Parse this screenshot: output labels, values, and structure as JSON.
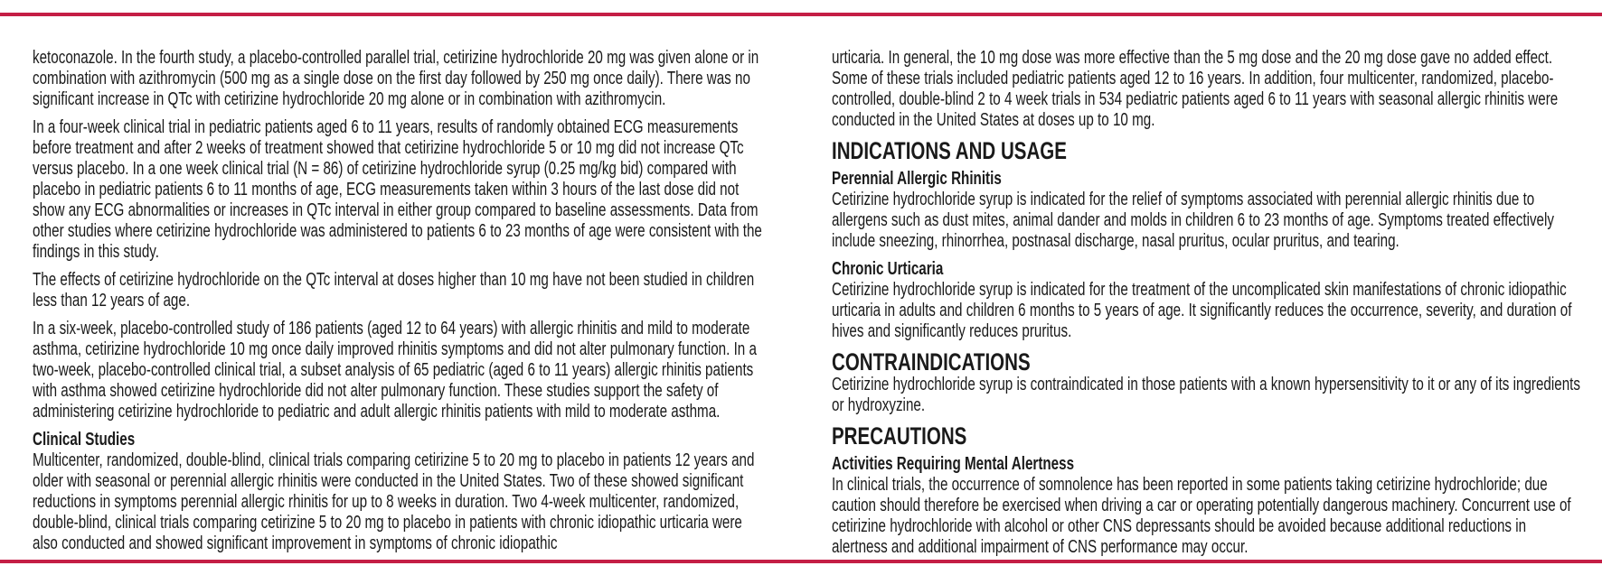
{
  "colors": {
    "rule": "#c41e45",
    "text": "#1a1a1a"
  },
  "left_column": {
    "paragraphs": [
      "ketoconazole. In the fourth study, a placebo-controlled parallel trial, cetirizine hydrochloride 20 mg was given alone or in combination with azithromycin (500 mg as a single dose on the first day followed by 250 mg once daily). There was no significant increase in QTc with cetirizine hydrochloride 20 mg alone or in combination with azithromycin.",
      "In a four-week clinical trial in pediatric patients aged 6 to 11 years, results of randomly obtained ECG measurements before treatment and after 2 weeks of treatment showed that cetirizine hydrochloride 5 or 10 mg did not increase QTc versus placebo. In a one week clinical trial (N = 86) of cetirizine hydrochloride syrup (0.25 mg/kg bid) compared with placebo in pediatric patients 6 to 11 months of age, ECG measurements taken within 3 hours of the last dose did not show any ECG abnormalities or increases in QTc interval in either group compared to baseline assessments. Data from other studies where cetirizine hydrochloride was administered to patients 6 to 23 months of age were consistent with the findings in this study.",
      "The effects of cetirizine hydrochloride on the QTc interval at doses higher than 10 mg have not been studied in children less than 12 years of age.",
      "In a six-week, placebo-controlled study of 186 patients (aged 12 to 64 years) with allergic rhinitis and mild to moderate asthma, cetirizine hydrochloride 10 mg once daily improved rhinitis symptoms and did not alter pulmonary function. In a two-week, placebo-controlled clinical trial, a subset analysis of 65 pediatric (aged 6 to 11 years) allergic rhinitis patients with asthma showed cetirizine hydrochloride did not alter pulmonary function. These studies support the safety of administering cetirizine hydrochloride to pediatric and adult allergic rhinitis patients with mild to moderate asthma."
    ],
    "clinical_studies": {
      "heading": "Clinical Studies",
      "text": "Multicenter, randomized, double-blind, clinical trials comparing cetirizine 5 to 20 mg to placebo in patients 12 years and older with seasonal or perennial allergic rhinitis were conducted in the United States. Two of these showed significant reductions in symptoms perennial allergic rhinitis for up to 8 weeks in duration. Two 4-week multicenter, randomized, double-blind, clinical trials comparing cetirizine 5 to 20 mg to placebo in patients with chronic idiopathic urticaria were also conducted and showed significant improvement in symptoms of chronic idiopathic"
    }
  },
  "right_column": {
    "continuation": "urticaria. In general, the 10 mg dose was more effective than the 5 mg dose and the 20 mg dose gave no added effect. Some of these trials included pediatric patients aged 12 to 16 years. In addition, four multicenter, randomized, placebo-controlled, double-blind 2 to 4 week trials in 534 pediatric patients aged 6 to 11 years with seasonal allergic rhinitis were conducted in the United States at doses up to 10 mg.",
    "indications": {
      "heading": "INDICATIONS AND USAGE",
      "perennial_heading": "Perennial Allergic Rhinitis",
      "perennial_text": "Cetirizine hydrochloride syrup is indicated for the relief of symptoms associated with perennial allergic rhinitis due to allergens such as dust mites, animal dander and molds in children 6 to 23 months of age. Symptoms treated effectively include sneezing, rhinorrhea, postnasal discharge, nasal pruritus, ocular pruritus, and tearing.",
      "urticaria_heading": "Chronic Urticaria",
      "urticaria_text": "Cetirizine hydrochloride syrup is indicated for the treatment of the uncomplicated skin manifestations of chronic idiopathic urticaria in adults and children 6 months to 5 years of age. It significantly reduces the occurrence, severity, and duration of hives and significantly reduces pruritus."
    },
    "contraindications": {
      "heading": "CONTRAINDICATIONS",
      "text": "Cetirizine hydrochloride syrup is contraindicated in those patients with a known hypersensitivity to it or any of its ingredients or hydroxyzine."
    },
    "precautions": {
      "heading": "PRECAUTIONS",
      "sub_heading": "Activities Requiring Mental Alertness",
      "text": "In clinical trials, the occurrence of somnolence has been reported in some patients taking cetirizine hydrochloride; due caution should therefore be exercised when driving a car or operating potentially dangerous machinery. Concurrent use of cetirizine hydrochloride with alcohol or other CNS depressants should be avoided because additional reductions in alertness and additional impairment of CNS performance may occur."
    }
  }
}
